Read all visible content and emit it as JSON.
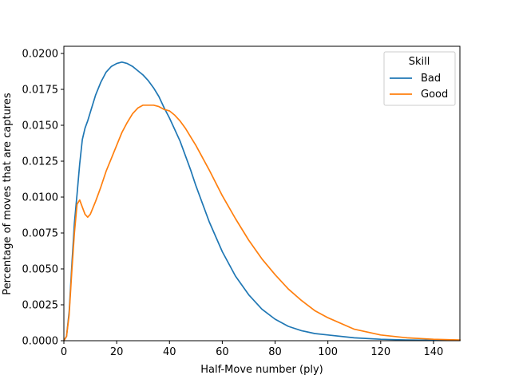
{
  "chart_data": {
    "type": "line",
    "xlabel": "Half-Move number (ply)",
    "ylabel": "Percentage of moves that are captures",
    "xlim": [
      0,
      150
    ],
    "ylim": [
      0,
      0.0205
    ],
    "x_ticks": [
      "0",
      "20",
      "40",
      "60",
      "80",
      "100",
      "120",
      "140"
    ],
    "y_ticks": [
      "0.0000",
      "0.0025",
      "0.0050",
      "0.0075",
      "0.0100",
      "0.0125",
      "0.0150",
      "0.0175",
      "0.0200"
    ],
    "grid": false,
    "legend": {
      "title": "Skill",
      "placement": "top-right"
    },
    "series": [
      {
        "name": "Bad",
        "color": "#1f77b4",
        "x": [
          0,
          1,
          2,
          3,
          4,
          5,
          6,
          7,
          8,
          9,
          10,
          12,
          14,
          16,
          18,
          20,
          22,
          24,
          26,
          28,
          30,
          32,
          34,
          36,
          38,
          40,
          42,
          44,
          46,
          48,
          50,
          55,
          60,
          65,
          70,
          75,
          80,
          85,
          90,
          95,
          100,
          110,
          120,
          130,
          140,
          150
        ],
        "y": [
          0.0,
          0.0003,
          0.002,
          0.0052,
          0.0082,
          0.0102,
          0.0123,
          0.014,
          0.0148,
          0.0153,
          0.0159,
          0.0171,
          0.018,
          0.0187,
          0.0191,
          0.0193,
          0.0194,
          0.0193,
          0.0191,
          0.0188,
          0.0185,
          0.0181,
          0.0176,
          0.017,
          0.0162,
          0.0155,
          0.0147,
          0.0139,
          0.0129,
          0.0119,
          0.0108,
          0.0083,
          0.0062,
          0.0045,
          0.0032,
          0.0022,
          0.0015,
          0.001,
          0.0007,
          0.0005,
          0.0004,
          0.0002,
          0.0001,
          5e-05,
          3e-05,
          2e-05
        ]
      },
      {
        "name": "Good",
        "color": "#ff7f0e",
        "x": [
          0,
          1,
          2,
          3,
          4,
          5,
          6,
          7,
          8,
          9,
          10,
          12,
          14,
          16,
          18,
          20,
          22,
          24,
          26,
          28,
          30,
          32,
          34,
          36,
          38,
          40,
          42,
          44,
          46,
          48,
          50,
          55,
          60,
          65,
          70,
          75,
          80,
          85,
          90,
          95,
          100,
          110,
          120,
          130,
          140,
          150
        ],
        "y": [
          0.0,
          0.0003,
          0.0018,
          0.0048,
          0.0075,
          0.0095,
          0.0098,
          0.0093,
          0.0088,
          0.0086,
          0.0088,
          0.0097,
          0.0107,
          0.0118,
          0.0127,
          0.0136,
          0.0145,
          0.0152,
          0.0158,
          0.0162,
          0.0164,
          0.0164,
          0.0164,
          0.0163,
          0.0161,
          0.016,
          0.0157,
          0.0153,
          0.0148,
          0.0142,
          0.0136,
          0.0119,
          0.0101,
          0.0085,
          0.007,
          0.0057,
          0.0046,
          0.0036,
          0.0028,
          0.0021,
          0.0016,
          0.0008,
          0.0004,
          0.0002,
          0.0001,
          5e-05
        ]
      }
    ]
  }
}
